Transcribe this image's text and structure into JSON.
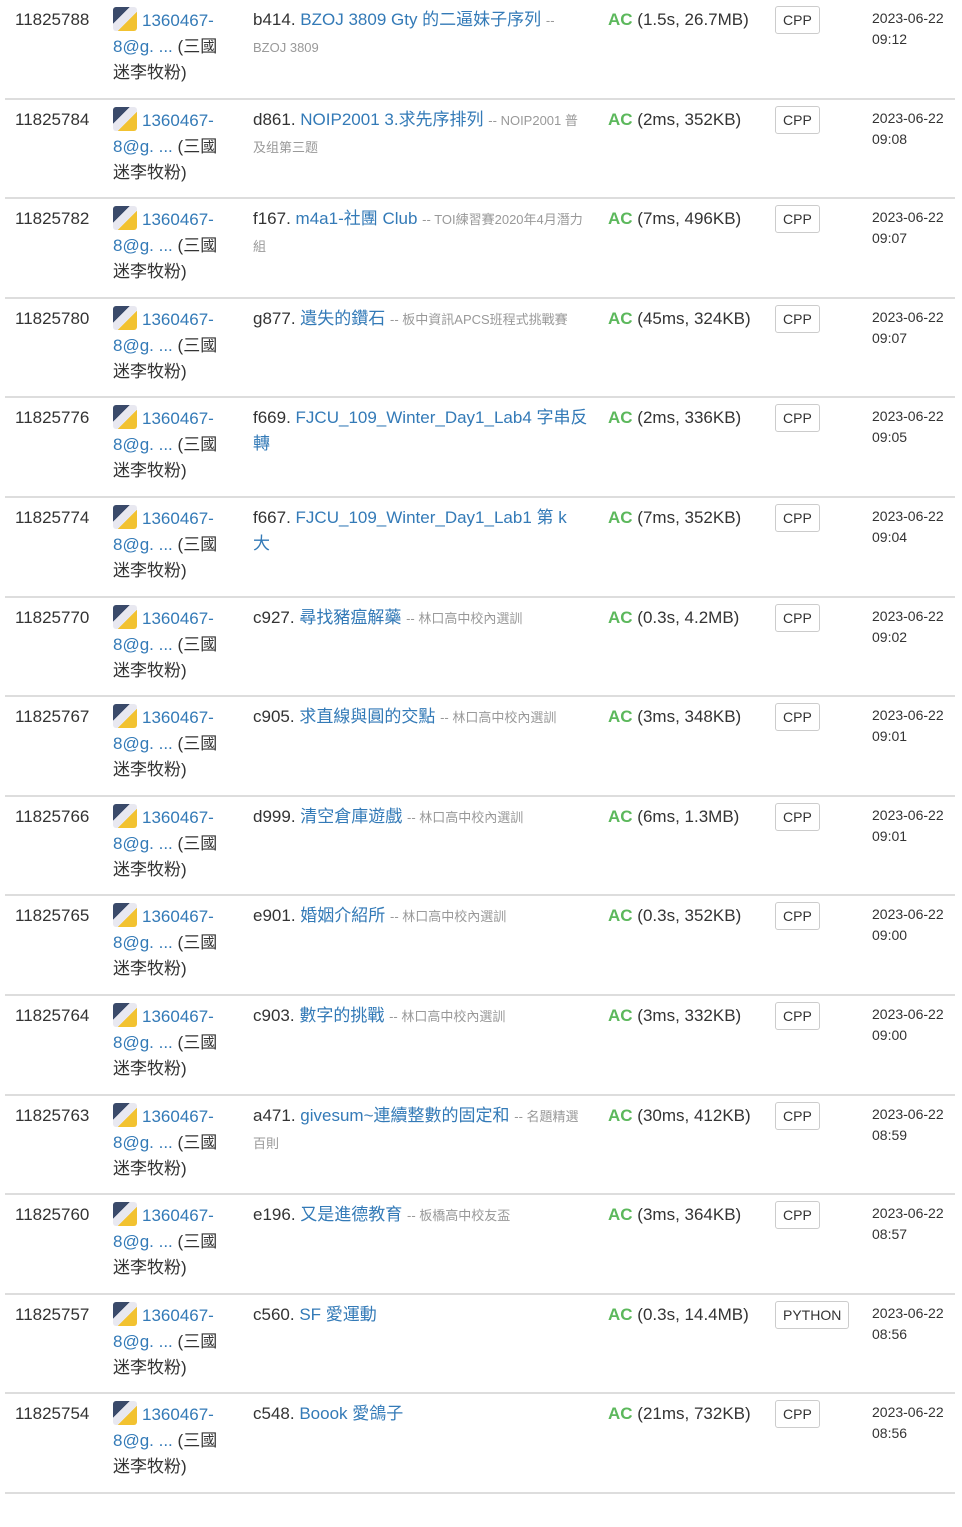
{
  "user": {
    "name_line": "1360467-8@g. ...",
    "nick": "(三國迷李牧粉)"
  },
  "rows": [
    {
      "id": "11825788",
      "pid": "b414.",
      "title": "BZOJ 3809 Gty 的二逼妹子序列",
      "source": "-- BZOJ 3809",
      "status": "AC",
      "detail": "(1.5s, 26.7MB)",
      "lang": "CPP",
      "date": "2023-06-22 09:12"
    },
    {
      "id": "11825784",
      "pid": "d861.",
      "title": "NOIP2001 3.求先序排列",
      "source": "-- NOIP2001 普及组第三题",
      "status": "AC",
      "detail": "(2ms, 352KB)",
      "lang": "CPP",
      "date": "2023-06-22 09:08"
    },
    {
      "id": "11825782",
      "pid": "f167.",
      "title": "m4a1-社團 Club",
      "source": "-- TOI練習賽2020年4月潛力組",
      "status": "AC",
      "detail": "(7ms, 496KB)",
      "lang": "CPP",
      "date": "2023-06-22 09:07"
    },
    {
      "id": "11825780",
      "pid": "g877.",
      "title": "遺失的鑽石",
      "source": "-- 板中資訊APCS班程式挑戰賽",
      "status": "AC",
      "detail": "(45ms, 324KB)",
      "lang": "CPP",
      "date": "2023-06-22 09:07"
    },
    {
      "id": "11825776",
      "pid": "f669.",
      "title": "FJCU_109_Winter_Day1_Lab4 字串反轉",
      "source": "",
      "status": "AC",
      "detail": "(2ms, 336KB)",
      "lang": "CPP",
      "date": "2023-06-22 09:05"
    },
    {
      "id": "11825774",
      "pid": "f667.",
      "title": "FJCU_109_Winter_Day1_Lab1 第 k 大",
      "source": "",
      "status": "AC",
      "detail": "(7ms, 352KB)",
      "lang": "CPP",
      "date": "2023-06-22 09:04"
    },
    {
      "id": "11825770",
      "pid": "c927.",
      "title": "尋找豬瘟解藥",
      "source": "-- 林口高中校內選訓",
      "status": "AC",
      "detail": "(0.3s, 4.2MB)",
      "lang": "CPP",
      "date": "2023-06-22 09:02"
    },
    {
      "id": "11825767",
      "pid": "c905.",
      "title": "求直線與圓的交點",
      "source": "-- 林口高中校內選訓",
      "status": "AC",
      "detail": "(3ms, 348KB)",
      "lang": "CPP",
      "date": "2023-06-22 09:01"
    },
    {
      "id": "11825766",
      "pid": "d999.",
      "title": "清空倉庫遊戲",
      "source": "-- 林口高中校內選訓",
      "status": "AC",
      "detail": "(6ms, 1.3MB)",
      "lang": "CPP",
      "date": "2023-06-22 09:01"
    },
    {
      "id": "11825765",
      "pid": "e901.",
      "title": "婚姻介紹所",
      "source": "-- 林口高中校內選訓",
      "status": "AC",
      "detail": "(0.3s, 352KB)",
      "lang": "CPP",
      "date": "2023-06-22 09:00"
    },
    {
      "id": "11825764",
      "pid": "c903.",
      "title": "數字的挑戰",
      "source": "-- 林口高中校內選訓",
      "status": "AC",
      "detail": "(3ms, 332KB)",
      "lang": "CPP",
      "date": "2023-06-22 09:00"
    },
    {
      "id": "11825763",
      "pid": "a471.",
      "title": "givesum~連續整數的固定和",
      "source": "-- 名題精選百則",
      "status": "AC",
      "detail": "(30ms, 412KB)",
      "lang": "CPP",
      "date": "2023-06-22 08:59"
    },
    {
      "id": "11825760",
      "pid": "e196.",
      "title": "又是進德教育",
      "source": "-- 板橋高中校友盃",
      "status": "AC",
      "detail": "(3ms, 364KB)",
      "lang": "CPP",
      "date": "2023-06-22 08:57"
    },
    {
      "id": "11825757",
      "pid": "c560.",
      "title": "SF 愛運動",
      "source": "",
      "status": "AC",
      "detail": "(0.3s, 14.4MB)",
      "lang": "PYTHON",
      "date": "2023-06-22 08:56"
    },
    {
      "id": "11825754",
      "pid": "c548.",
      "title": "Boook 愛鴿子",
      "source": "",
      "status": "AC",
      "detail": "(21ms, 732KB)",
      "lang": "CPP",
      "date": "2023-06-22 08:56"
    }
  ]
}
